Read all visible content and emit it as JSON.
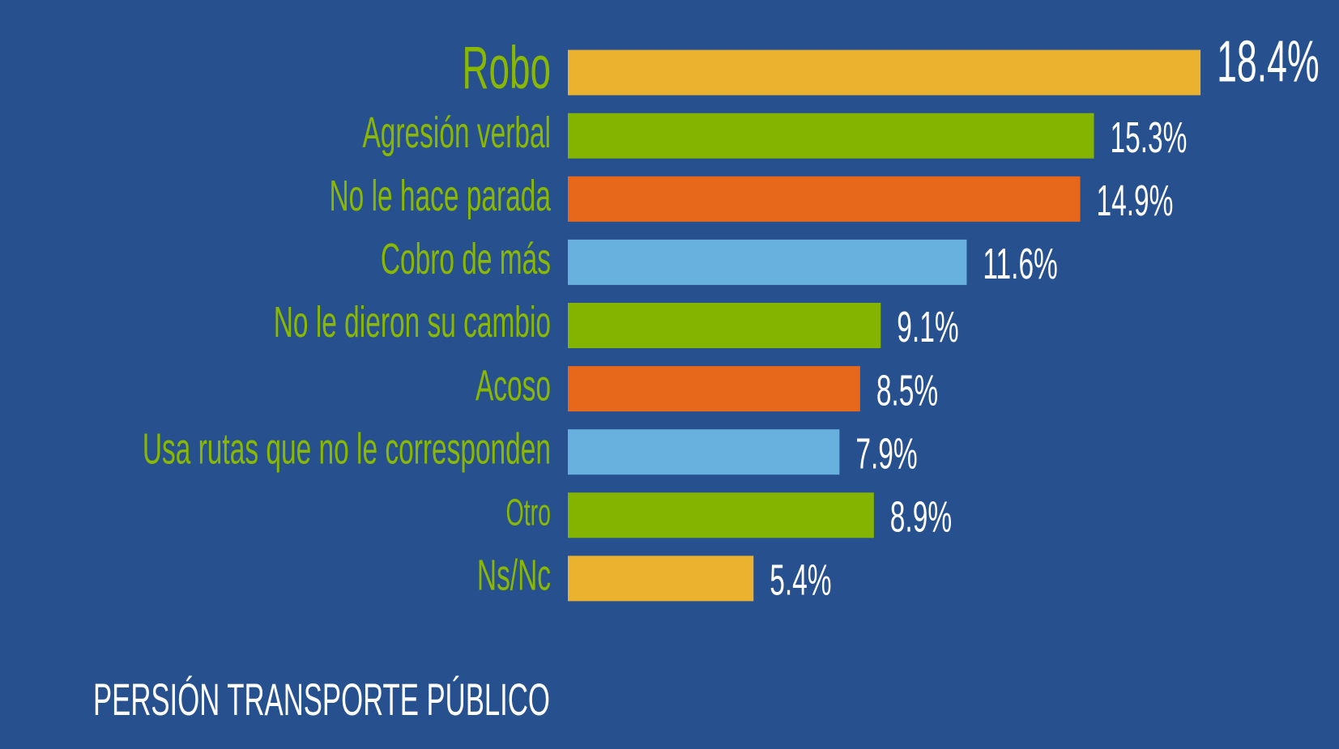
{
  "chart_data": {
    "type": "bar",
    "categories": [
      "Robo",
      "Agresión verbal",
      "No le hace parada",
      "Cobro de más",
      "No le dieron su cambio",
      "Acoso",
      "Usa rutas que no le corresponden",
      "Otro",
      "Ns/Nc"
    ],
    "values": [
      18.4,
      15.3,
      14.9,
      11.6,
      9.1,
      8.5,
      7.9,
      8.9,
      5.4
    ],
    "value_labels": [
      "18.4%",
      "15.3%",
      "14.9%",
      "11.6%",
      "9.1%",
      "8.5%",
      "7.9%",
      "8.9%",
      "5.4%"
    ],
    "colors": [
      "#eab22f",
      "#84b300",
      "#e8681b",
      "#68b0de",
      "#84b300",
      "#e8681b",
      "#68b0de",
      "#84b300",
      "#eab22f"
    ],
    "footer_heading": "PERSIÓN TRANSPORTE PÚBLICO"
  }
}
